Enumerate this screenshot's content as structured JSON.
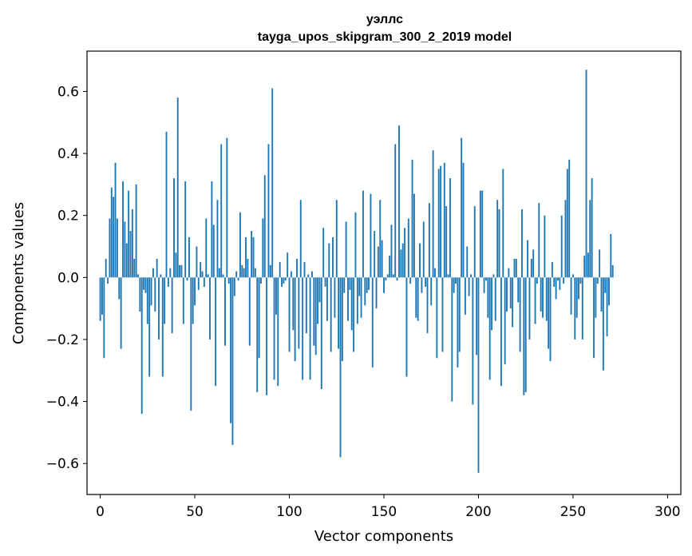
{
  "chart_data": {
    "type": "bar",
    "title": "уэллс",
    "subtitle": "tayga_upos_skipgram_300_2_2019 model",
    "xlabel": "Vector components",
    "ylabel": "Components values",
    "xlim": [
      -7,
      307
    ],
    "ylim": [
      -0.7,
      0.73
    ],
    "xticks": [
      0,
      50,
      100,
      150,
      200,
      250,
      300
    ],
    "xtick_labels": [
      "0",
      "50",
      "100",
      "150",
      "200",
      "250",
      "300"
    ],
    "yticks": [
      -0.6,
      -0.4,
      -0.2,
      0.0,
      0.2,
      0.4,
      0.6
    ],
    "ytick_labels": [
      "−0.6",
      "−0.4",
      "−0.2",
      "0.0",
      "0.2",
      "0.4",
      "0.6"
    ],
    "bar_color": "#1f77b4",
    "values": [
      -0.14,
      -0.12,
      -0.26,
      0.06,
      -0.02,
      0.19,
      0.29,
      0.26,
      0.37,
      0.19,
      -0.07,
      -0.23,
      0.31,
      0.18,
      0.11,
      0.28,
      0.15,
      0.22,
      0.06,
      0.3,
      0.01,
      -0.11,
      -0.44,
      -0.04,
      -0.05,
      -0.15,
      -0.32,
      -0.09,
      0.03,
      -0.11,
      0.06,
      -0.2,
      0.01,
      -0.32,
      -0.15,
      0.47,
      -0.03,
      0.03,
      -0.18,
      0.32,
      0.08,
      0.58,
      0.04,
      0.04,
      -0.15,
      0.31,
      -0.01,
      0.13,
      -0.43,
      -0.15,
      -0.09,
      0.1,
      -0.04,
      0.05,
      0.02,
      -0.03,
      0.19,
      0.01,
      -0.2,
      0.31,
      0.17,
      -0.35,
      0.25,
      0.03,
      0.43,
      0.01,
      -0.22,
      0.45,
      -0.02,
      -0.47,
      -0.54,
      -0.06,
      0.02,
      -0.01,
      0.21,
      0.04,
      0.03,
      0.13,
      0.06,
      -0.22,
      0.15,
      0.13,
      0.03,
      -0.37,
      -0.26,
      -0.02,
      0.19,
      0.33,
      -0.38,
      0.43,
      0.04,
      0.61,
      -0.33,
      -0.12,
      -0.35,
      0.05,
      -0.03,
      -0.02,
      -0.01,
      0.08,
      -0.24,
      0.02,
      -0.17,
      -0.27,
      0.06,
      -0.23,
      0.25,
      -0.33,
      0.05,
      -0.18,
      0.01,
      -0.33,
      0.02,
      -0.22,
      -0.25,
      -0.15,
      -0.08,
      -0.36,
      0.16,
      -0.03,
      -0.14,
      0.11,
      -0.24,
      0.13,
      -0.13,
      0.25,
      -0.23,
      -0.58,
      -0.27,
      -0.05,
      0.18,
      -0.14,
      -0.04,
      -0.17,
      -0.24,
      0.21,
      -0.15,
      -0.06,
      -0.13,
      0.28,
      -0.09,
      -0.05,
      -0.04,
      0.27,
      -0.29,
      0.15,
      -0.1,
      0.1,
      0.25,
      0.12,
      -0.05,
      -0.01,
      0.01,
      0.07,
      0.17,
      0.01,
      0.43,
      -0.01,
      0.49,
      0.09,
      0.11,
      0.16,
      -0.32,
      0.19,
      -0.02,
      0.38,
      0.27,
      -0.13,
      -0.14,
      0.11,
      -0.05,
      0.18,
      -0.03,
      -0.18,
      0.24,
      -0.09,
      0.41,
      0.03,
      -0.26,
      0.35,
      0.36,
      -0.24,
      0.37,
      0.23,
      0.01,
      0.32,
      -0.4,
      -0.05,
      -0.02,
      -0.29,
      -0.24,
      0.45,
      0.37,
      -0.12,
      0.1,
      -0.06,
      0.01,
      -0.41,
      0.23,
      -0.25,
      -0.63,
      0.28,
      0.28,
      -0.05,
      -0.01,
      -0.13,
      -0.33,
      -0.17,
      0.01,
      -0.14,
      0.25,
      0.22,
      -0.35,
      0.35,
      -0.28,
      -0.11,
      0.03,
      -0.1,
      -0.16,
      0.06,
      0.06,
      -0.08,
      -0.24,
      0.22,
      -0.38,
      -0.37,
      0.12,
      -0.2,
      0.06,
      0.09,
      -0.15,
      -0.02,
      0.24,
      -0.11,
      -0.13,
      0.2,
      -0.14,
      -0.23,
      -0.27,
      0.05,
      -0.03,
      -0.07,
      -0.01,
      -0.04,
      0.2,
      -0.02,
      0.25,
      0.35,
      0.38,
      -0.12,
      0.01,
      -0.2,
      -0.13,
      -0.07,
      -0.02,
      -0.2,
      0.07,
      0.67,
      0.08,
      0.25,
      0.32,
      -0.26,
      -0.13,
      -0.02,
      0.09,
      -0.11,
      -0.3,
      -0.05,
      -0.19,
      -0.09,
      0.14,
      0.04
    ]
  }
}
